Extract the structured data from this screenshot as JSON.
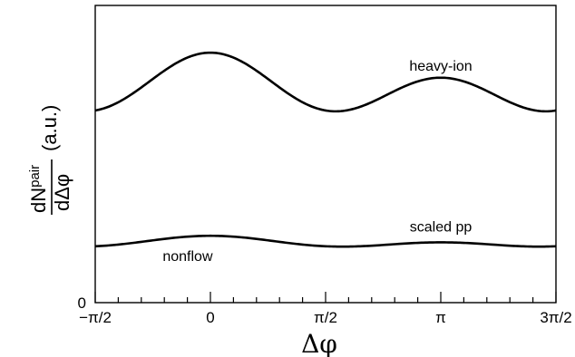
{
  "chart_data": {
    "type": "line",
    "title": "",
    "xlabel": "Δφ",
    "ylabel": {
      "numerator_main": "dN",
      "numerator_sub": "pair",
      "denominator": "dΔφ",
      "unit": "(a.u.)"
    },
    "xlim": [
      -1.5708,
      4.7124
    ],
    "ylim": [
      0,
      1
    ],
    "grid": false,
    "x_ticks": [
      {
        "value": -1.5708,
        "label": "−π/2"
      },
      {
        "value": 0,
        "label": "0"
      },
      {
        "value": 1.5708,
        "label": "π/2"
      },
      {
        "value": 3.1416,
        "label": "π"
      },
      {
        "value": 4.7124,
        "label": "3π/2"
      }
    ],
    "y_ticks": [
      {
        "value": 0,
        "label": "0"
      }
    ],
    "series": [
      {
        "name": "heavy-ion",
        "model": "cos-harmonics",
        "a0": 0.7228,
        "a1": 0.0421,
        "a2": 0.0762,
        "x_range": [
          -1.5708,
          4.7124
        ]
      },
      {
        "name": "scaled pp",
        "model": "cos-harmonics",
        "a0": 0.2018,
        "a1": 0.011,
        "a2": 0.0121,
        "x_range": [
          -1.5708,
          4.7124
        ]
      }
    ],
    "annotations": [
      {
        "text": "heavy-ion",
        "x": 3.1416,
        "y": 0.78
      },
      {
        "text": "scaled pp",
        "x": 3.1416,
        "y": 0.24
      },
      {
        "text": "nonflow",
        "x": -0.31,
        "y": 0.14
      }
    ]
  }
}
